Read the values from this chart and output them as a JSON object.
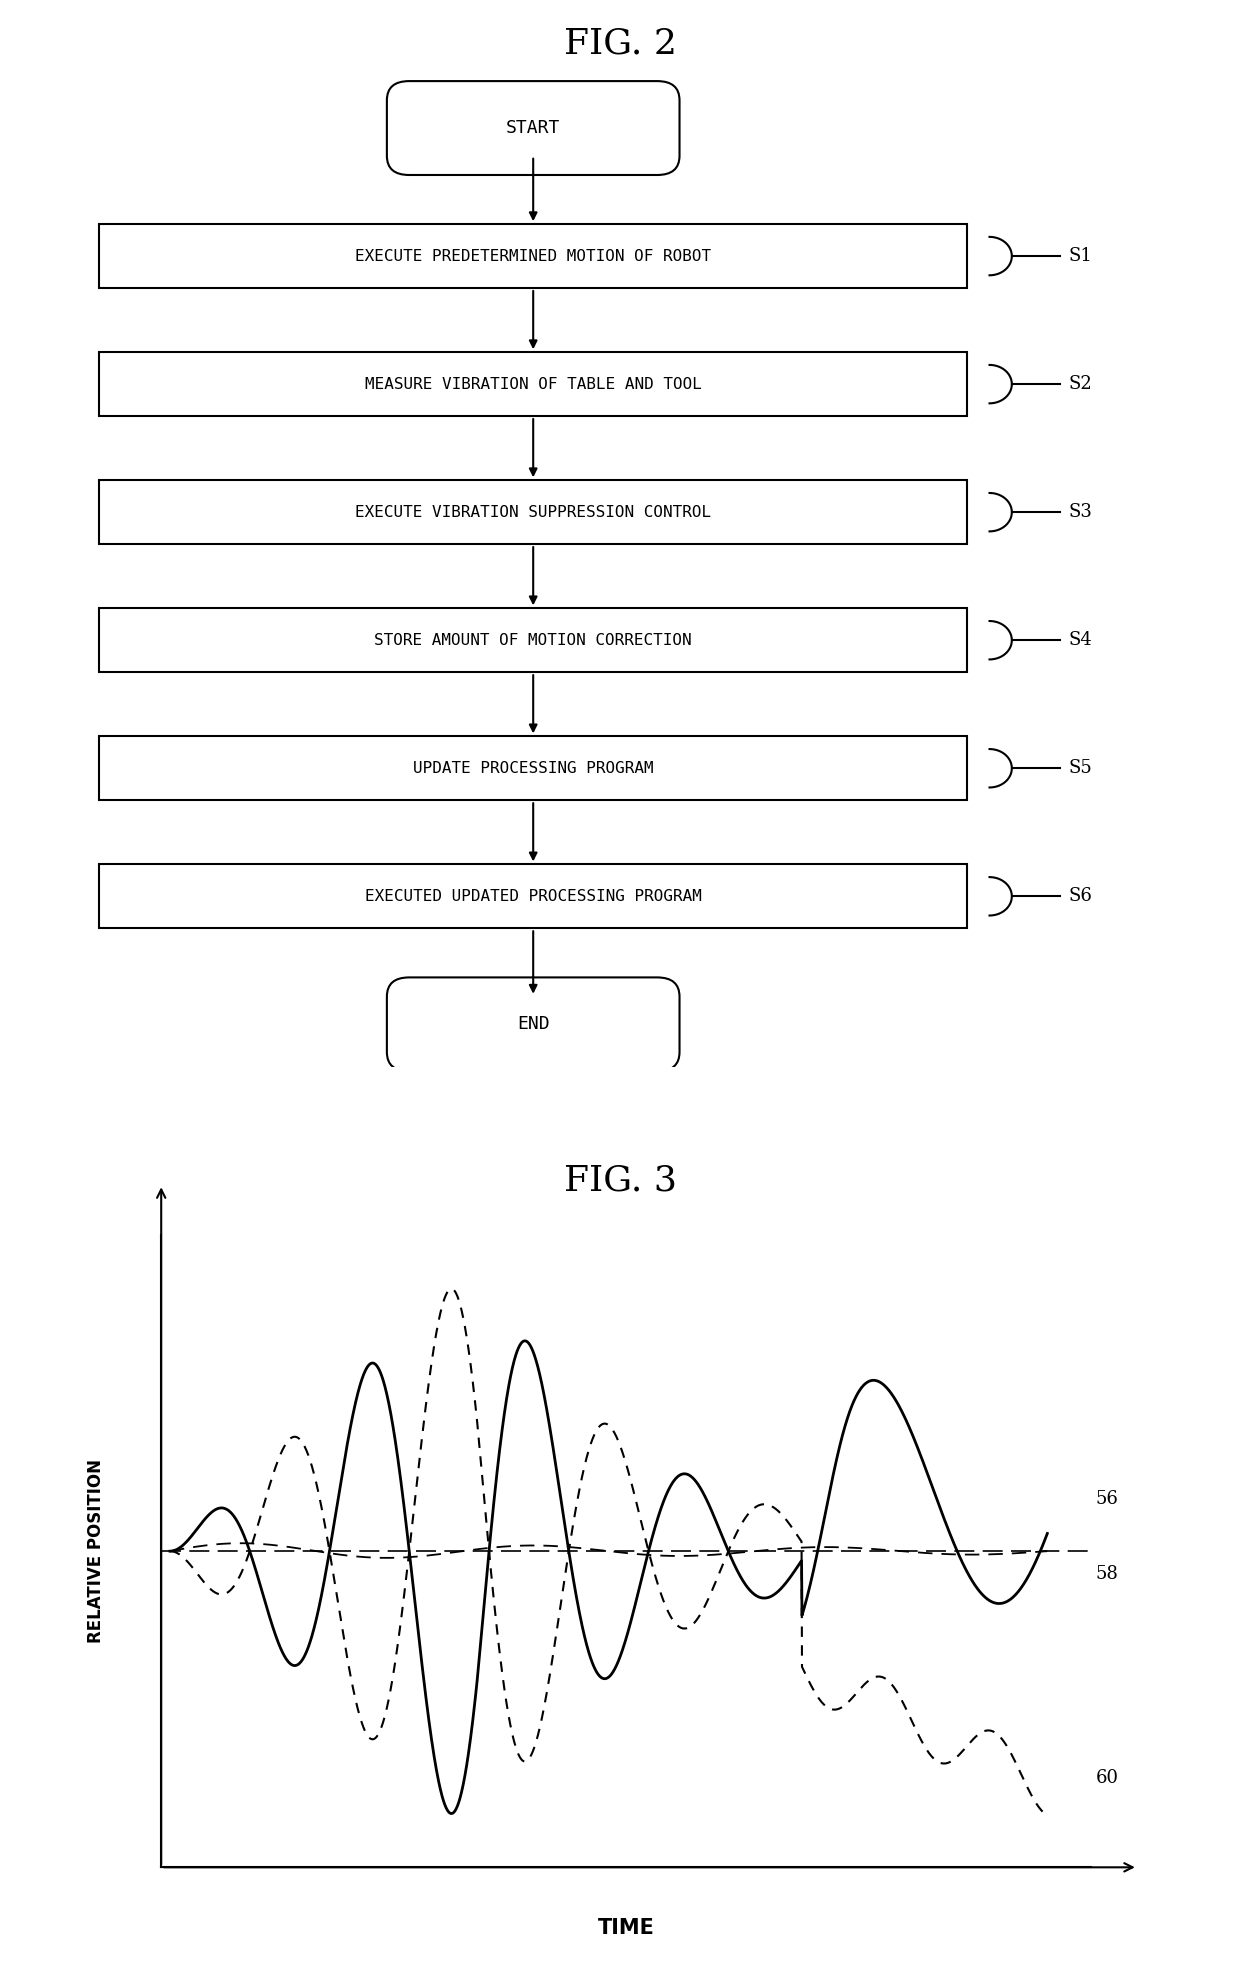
{
  "fig2_title": "FIG. 2",
  "fig3_title": "FIG. 3",
  "flowchart_steps": [
    {
      "label": "START",
      "type": "oval",
      "step": null
    },
    {
      "label": "EXECUTE PREDETERMINED MOTION OF ROBOT",
      "type": "rect",
      "step": "S1"
    },
    {
      "label": "MEASURE VIBRATION OF TABLE AND TOOL",
      "type": "rect",
      "step": "S2"
    },
    {
      "label": "EXECUTE VIBRATION SUPPRESSION CONTROL",
      "type": "rect",
      "step": "S3"
    },
    {
      "label": "STORE AMOUNT OF MOTION CORRECTION",
      "type": "rect",
      "step": "S4"
    },
    {
      "label": "UPDATE PROCESSING PROGRAM",
      "type": "rect",
      "step": "S5"
    },
    {
      "label": "EXECUTED UPDATED PROCESSING PROGRAM",
      "type": "rect",
      "step": "S6"
    },
    {
      "label": "END",
      "type": "oval",
      "step": null
    }
  ],
  "box_color": "#000000",
  "background_color": "#ffffff",
  "text_color": "#000000",
  "xlabel": "TIME",
  "ylabel": "RELATIVE POSITION",
  "line_label_58": "58",
  "line_label_56": "56",
  "line_label_60": "60"
}
